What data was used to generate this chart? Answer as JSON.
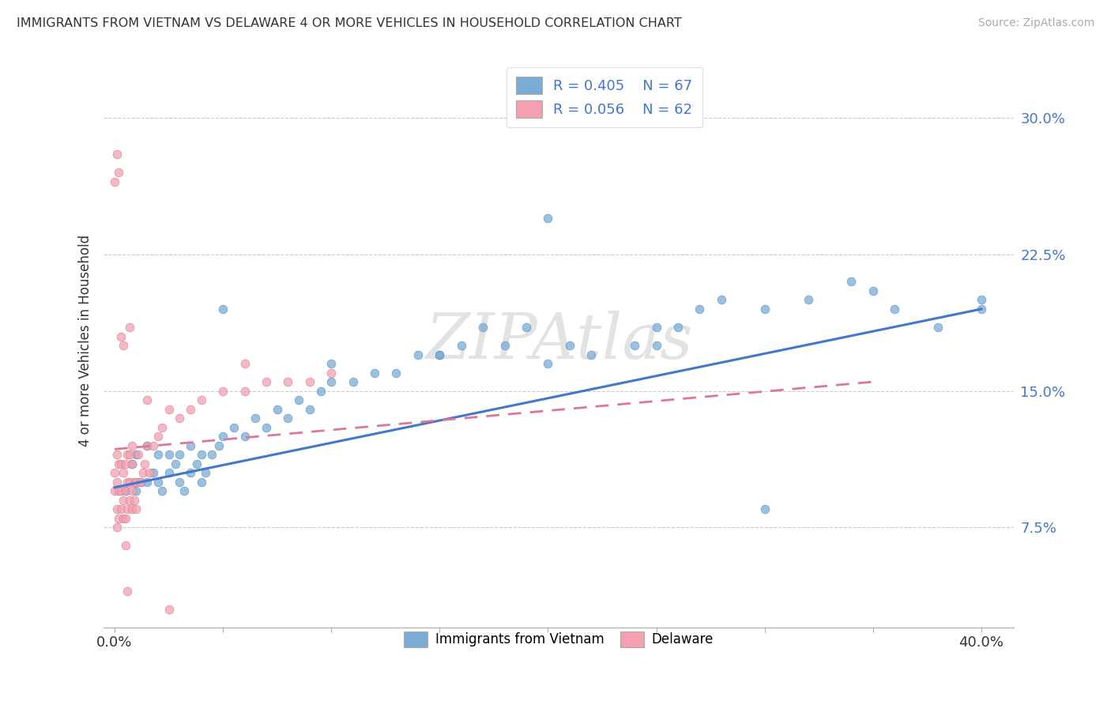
{
  "title": "IMMIGRANTS FROM VIETNAM VS DELAWARE 4 OR MORE VEHICLES IN HOUSEHOLD CORRELATION CHART",
  "source": "Source: ZipAtlas.com",
  "ylabel": "4 or more Vehicles in Household",
  "ytick_vals": [
    0.075,
    0.15,
    0.225,
    0.3
  ],
  "ytick_labels": [
    "7.5%",
    "15.0%",
    "22.5%",
    "30.0%"
  ],
  "xlim": [
    -0.005,
    0.415
  ],
  "ylim": [
    0.02,
    0.335
  ],
  "color_blue": "#7aacd6",
  "color_blue_edge": "#5588bb",
  "color_blue_line": "#4477cc",
  "color_pink": "#f4a0b0",
  "color_pink_edge": "#cc7788",
  "color_pink_line": "#dd7799",
  "blue_x": [
    0.005,
    0.008,
    0.01,
    0.01,
    0.012,
    0.015,
    0.015,
    0.018,
    0.02,
    0.02,
    0.022,
    0.025,
    0.025,
    0.028,
    0.03,
    0.03,
    0.032,
    0.035,
    0.035,
    0.038,
    0.04,
    0.04,
    0.042,
    0.045,
    0.048,
    0.05,
    0.055,
    0.06,
    0.065,
    0.07,
    0.075,
    0.08,
    0.085,
    0.09,
    0.095,
    0.1,
    0.11,
    0.12,
    0.13,
    0.14,
    0.15,
    0.16,
    0.17,
    0.18,
    0.19,
    0.2,
    0.21,
    0.22,
    0.24,
    0.25,
    0.26,
    0.27,
    0.28,
    0.3,
    0.32,
    0.34,
    0.36,
    0.38,
    0.4,
    0.05,
    0.1,
    0.15,
    0.2,
    0.25,
    0.3,
    0.35,
    0.4
  ],
  "blue_y": [
    0.095,
    0.11,
    0.095,
    0.115,
    0.1,
    0.1,
    0.12,
    0.105,
    0.1,
    0.115,
    0.095,
    0.105,
    0.115,
    0.11,
    0.1,
    0.115,
    0.095,
    0.105,
    0.12,
    0.11,
    0.1,
    0.115,
    0.105,
    0.115,
    0.12,
    0.125,
    0.13,
    0.125,
    0.135,
    0.13,
    0.14,
    0.135,
    0.145,
    0.14,
    0.15,
    0.155,
    0.155,
    0.16,
    0.16,
    0.17,
    0.17,
    0.175,
    0.185,
    0.175,
    0.185,
    0.165,
    0.175,
    0.17,
    0.175,
    0.185,
    0.185,
    0.195,
    0.2,
    0.085,
    0.2,
    0.21,
    0.195,
    0.185,
    0.2,
    0.195,
    0.165,
    0.17,
    0.245,
    0.175,
    0.195,
    0.205,
    0.195
  ],
  "pink_x": [
    0.0,
    0.0,
    0.001,
    0.001,
    0.001,
    0.001,
    0.002,
    0.002,
    0.002,
    0.003,
    0.003,
    0.003,
    0.004,
    0.004,
    0.004,
    0.005,
    0.005,
    0.005,
    0.006,
    0.006,
    0.006,
    0.007,
    0.007,
    0.007,
    0.008,
    0.008,
    0.008,
    0.009,
    0.009,
    0.01,
    0.01,
    0.011,
    0.012,
    0.013,
    0.014,
    0.015,
    0.016,
    0.018,
    0.02,
    0.022,
    0.025,
    0.03,
    0.035,
    0.04,
    0.05,
    0.06,
    0.07,
    0.08,
    0.09,
    0.1,
    0.0,
    0.001,
    0.002,
    0.003,
    0.004,
    0.005,
    0.006,
    0.007,
    0.008,
    0.015,
    0.025,
    0.06
  ],
  "pink_y": [
    0.095,
    0.105,
    0.075,
    0.085,
    0.1,
    0.115,
    0.08,
    0.095,
    0.11,
    0.085,
    0.095,
    0.11,
    0.08,
    0.09,
    0.105,
    0.08,
    0.095,
    0.11,
    0.085,
    0.1,
    0.115,
    0.09,
    0.1,
    0.115,
    0.085,
    0.095,
    0.11,
    0.09,
    0.1,
    0.085,
    0.1,
    0.115,
    0.1,
    0.105,
    0.11,
    0.12,
    0.105,
    0.12,
    0.125,
    0.13,
    0.14,
    0.135,
    0.14,
    0.145,
    0.15,
    0.15,
    0.155,
    0.155,
    0.155,
    0.16,
    0.265,
    0.28,
    0.27,
    0.18,
    0.175,
    0.065,
    0.04,
    0.185,
    0.12,
    0.145,
    0.03,
    0.165
  ],
  "blue_line_x": [
    0.0,
    0.4
  ],
  "blue_line_y": [
    0.097,
    0.195
  ],
  "pink_line_x": [
    0.0,
    0.35
  ],
  "pink_line_y": [
    0.118,
    0.155
  ]
}
